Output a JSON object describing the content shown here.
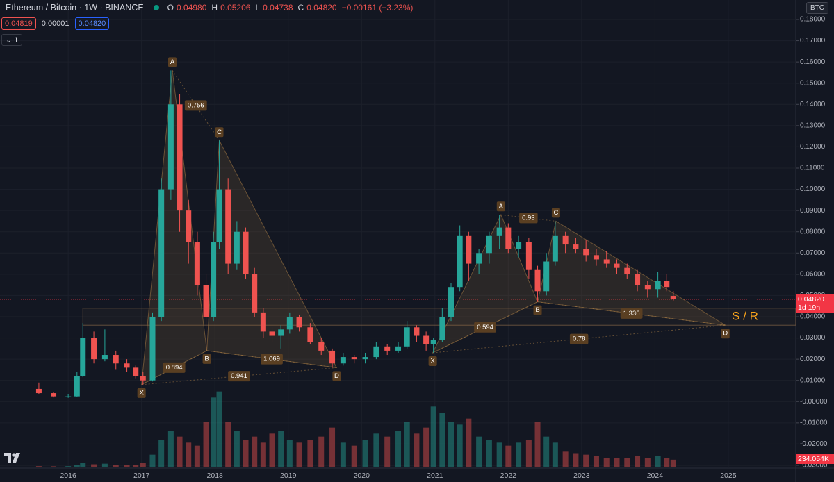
{
  "chart_data": {
    "type": "candlestick",
    "title": "Ethereum / Bitcoin · 1W · BINANCE",
    "legend": {
      "o_label": "O",
      "o": "0.04980",
      "h_label": "H",
      "h": "0.05206",
      "l_label": "L",
      "l": "0.04738",
      "c_label": "C",
      "c": "0.04820",
      "change": "−0.00161 (−3.23%)"
    },
    "bid": "0.04819",
    "spread": "0.00001",
    "ask": "0.04820",
    "indicators_count": "1",
    "currency": "BTC",
    "up_color": "#26a69a",
    "down_color": "#ef5350",
    "x": [
      2015.6,
      2015.8,
      2016.0,
      2016.12,
      2016.2,
      2016.35,
      2016.5,
      2016.65,
      2016.8,
      2016.92,
      2017.02,
      2017.15,
      2017.27,
      2017.4,
      2017.52,
      2017.64,
      2017.76,
      2017.88,
      2017.98,
      2018.06,
      2018.18,
      2018.3,
      2018.42,
      2018.54,
      2018.66,
      2018.78,
      2018.9,
      2019.02,
      2019.15,
      2019.3,
      2019.45,
      2019.6,
      2019.75,
      2019.9,
      2020.05,
      2020.2,
      2020.35,
      2020.5,
      2020.62,
      2020.75,
      2020.88,
      2020.98,
      2021.1,
      2021.22,
      2021.34,
      2021.46,
      2021.6,
      2021.74,
      2021.88,
      2022.0,
      2022.14,
      2022.28,
      2022.4,
      2022.52,
      2022.64,
      2022.78,
      2022.92,
      2023.06,
      2023.2,
      2023.34,
      2023.48,
      2023.62,
      2023.76,
      2023.9,
      2024.04,
      2024.16,
      2024.25
    ],
    "open": [
      0.006,
      0.004,
      0.0025,
      0.0025,
      0.012,
      0.03,
      0.02,
      0.022,
      0.018,
      0.016,
      0.012,
      0.01,
      0.04,
      0.1,
      0.14,
      0.09,
      0.075,
      0.055,
      0.04,
      0.075,
      0.1,
      0.065,
      0.08,
      0.06,
      0.042,
      0.033,
      0.031,
      0.034,
      0.04,
      0.035,
      0.028,
      0.024,
      0.018,
      0.021,
      0.02,
      0.021,
      0.026,
      0.024,
      0.026,
      0.035,
      0.031,
      0.027,
      0.029,
      0.04,
      0.054,
      0.078,
      0.065,
      0.07,
      0.078,
      0.082,
      0.072,
      0.075,
      0.062,
      0.052,
      0.066,
      0.078,
      0.074,
      0.072,
      0.069,
      0.067,
      0.065,
      0.063,
      0.06,
      0.055,
      0.053,
      0.057,
      0.0498
    ],
    "high": [
      0.009,
      0.0045,
      0.0035,
      0.014,
      0.037,
      0.033,
      0.034,
      0.024,
      0.02,
      0.017,
      0.014,
      0.042,
      0.105,
      0.156,
      0.145,
      0.095,
      0.08,
      0.06,
      0.08,
      0.123,
      0.105,
      0.085,
      0.082,
      0.063,
      0.044,
      0.035,
      0.036,
      0.042,
      0.041,
      0.037,
      0.03,
      0.025,
      0.023,
      0.022,
      0.023,
      0.028,
      0.027,
      0.028,
      0.038,
      0.036,
      0.033,
      0.03,
      0.044,
      0.056,
      0.083,
      0.08,
      0.072,
      0.08,
      0.088,
      0.084,
      0.078,
      0.077,
      0.064,
      0.07,
      0.085,
      0.08,
      0.077,
      0.076,
      0.072,
      0.071,
      0.067,
      0.065,
      0.062,
      0.057,
      0.061,
      0.06,
      0.05206
    ],
    "low": [
      0.0035,
      0.002,
      0.0018,
      0.0024,
      0.0115,
      0.018,
      0.019,
      0.015,
      0.014,
      0.011,
      0.008,
      0.0095,
      0.038,
      0.095,
      0.08,
      0.065,
      0.05,
      0.024,
      0.038,
      0.072,
      0.06,
      0.062,
      0.058,
      0.04,
      0.03,
      0.028,
      0.025,
      0.032,
      0.033,
      0.027,
      0.022,
      0.016,
      0.017,
      0.018,
      0.018,
      0.02,
      0.022,
      0.023,
      0.025,
      0.028,
      0.024,
      0.023,
      0.028,
      0.038,
      0.052,
      0.057,
      0.06,
      0.065,
      0.072,
      0.07,
      0.068,
      0.058,
      0.047,
      0.05,
      0.064,
      0.07,
      0.07,
      0.066,
      0.064,
      0.063,
      0.06,
      0.058,
      0.052,
      0.049,
      0.049,
      0.052,
      0.04738
    ],
    "close": [
      0.004,
      0.0025,
      0.0025,
      0.012,
      0.03,
      0.02,
      0.022,
      0.018,
      0.016,
      0.012,
      0.01,
      0.04,
      0.1,
      0.14,
      0.09,
      0.075,
      0.055,
      0.04,
      0.075,
      0.1,
      0.065,
      0.08,
      0.06,
      0.042,
      0.033,
      0.031,
      0.034,
      0.04,
      0.035,
      0.028,
      0.024,
      0.018,
      0.021,
      0.02,
      0.021,
      0.026,
      0.024,
      0.026,
      0.035,
      0.031,
      0.027,
      0.029,
      0.04,
      0.054,
      0.078,
      0.065,
      0.07,
      0.078,
      0.082,
      0.072,
      0.075,
      0.062,
      0.052,
      0.066,
      0.078,
      0.074,
      0.072,
      0.069,
      0.067,
      0.065,
      0.063,
      0.06,
      0.055,
      0.053,
      0.057,
      0.054,
      0.0482
    ],
    "volume": {
      "values": [
        20,
        15,
        20,
        60,
        120,
        80,
        100,
        60,
        50,
        60,
        120,
        400,
        900,
        1200,
        1000,
        800,
        700,
        1500,
        2300,
        2500,
        1500,
        1200,
        900,
        1000,
        800,
        1100,
        1200,
        900,
        800,
        900,
        1000,
        1300,
        800,
        700,
        900,
        1100,
        1000,
        1200,
        1500,
        1100,
        1300,
        2000,
        1800,
        1500,
        1400,
        1600,
        1000,
        900,
        800,
        700,
        800,
        900,
        1500,
        1000,
        800,
        500,
        450,
        400,
        350,
        300,
        280,
        300,
        350,
        300,
        350,
        300,
        234.054
      ],
      "vlim": [
        0,
        3000
      ],
      "last_label": "234.054K"
    },
    "last_price": {
      "value": 0.0482,
      "label": "0.04820",
      "countdown": "1d 19h"
    },
    "sr_zone": {
      "start": 2016.2,
      "low": 0.036,
      "high": 0.044,
      "label": "S / R"
    },
    "patterns": [
      {
        "points": [
          {
            "label": "X",
            "x": 2017.0,
            "y": 0.008
          },
          {
            "label": "A",
            "x": 2017.42,
            "y": 0.156
          },
          {
            "label": "B",
            "x": 2017.89,
            "y": 0.024
          },
          {
            "label": "C",
            "x": 2018.06,
            "y": 0.123
          },
          {
            "label": "D",
            "x": 2019.66,
            "y": 0.016
          }
        ],
        "ratios": {
          "ac": 0.756,
          "xb": 0.894,
          "bd": 1.069,
          "xd": 0.941
        }
      },
      {
        "points": [
          {
            "label": "X",
            "x": 2020.97,
            "y": 0.023
          },
          {
            "label": "A",
            "x": 2021.9,
            "y": 0.088
          },
          {
            "label": "B",
            "x": 2022.4,
            "y": 0.047
          },
          {
            "label": "C",
            "x": 2022.65,
            "y": 0.085
          },
          {
            "label": "D",
            "x": 2024.96,
            "y": 0.036
          }
        ],
        "ratios": {
          "ac": 0.93,
          "xb": 0.594,
          "bd": 1.336,
          "xd": 0.78
        }
      }
    ],
    "xlim": [
      2015.07,
      2025.92
    ],
    "xticks": [
      2016,
      2017,
      2018,
      2019,
      2020,
      2021,
      2022,
      2023,
      2024,
      2025
    ],
    "ylim": [
      -0.03,
      0.18
    ],
    "yticks": [
      {
        "value": 0.18,
        "label": "0.18000"
      },
      {
        "value": 0.17,
        "label": "0.17000"
      },
      {
        "value": 0.16,
        "label": "0.16000"
      },
      {
        "value": 0.15,
        "label": "0.15000"
      },
      {
        "value": 0.14,
        "label": "0.14000"
      },
      {
        "value": 0.13,
        "label": "0.13000"
      },
      {
        "value": 0.12,
        "label": "0.12000"
      },
      {
        "value": 0.11,
        "label": "0.11000"
      },
      {
        "value": 0.1,
        "label": "0.10000"
      },
      {
        "value": 0.09,
        "label": "0.09000"
      },
      {
        "value": 0.08,
        "label": "0.08000"
      },
      {
        "value": 0.07,
        "label": "0.07000"
      },
      {
        "value": 0.06,
        "label": "0.06000"
      },
      {
        "value": 0.05,
        "label": "0.05000"
      },
      {
        "value": 0.04,
        "label": "0.04000"
      },
      {
        "value": 0.03,
        "label": "0.03000"
      },
      {
        "value": 0.02,
        "label": "0.02000"
      },
      {
        "value": 0.01,
        "label": "0.01000"
      },
      {
        "value": 0,
        "label": "-0.00000"
      },
      {
        "value": -0.01,
        "label": "-0.01000"
      },
      {
        "value": -0.02,
        "label": "-0.02000"
      },
      {
        "value": -0.03,
        "label": "-0.03000"
      }
    ],
    "grid": true
  }
}
